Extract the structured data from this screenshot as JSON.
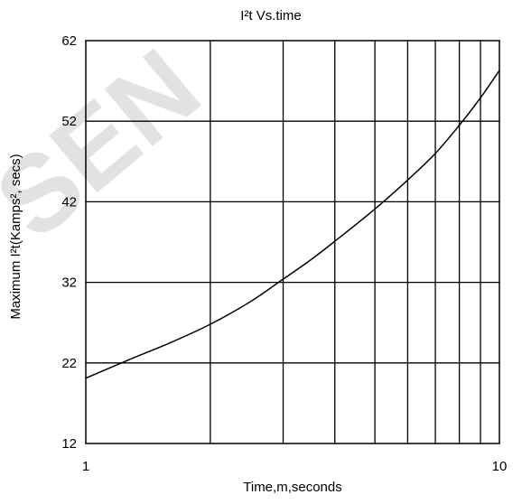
{
  "chart_data": {
    "type": "line",
    "title": "I²t  Vs.time",
    "xlabel": "Time,m,seconds",
    "ylabel": "Maximum I²t(Kamps², secs)",
    "xscale": "log",
    "xlim": [
      1,
      10
    ],
    "ylim": [
      12,
      62
    ],
    "xticks": [
      1,
      10
    ],
    "xtick_labels": [
      "1",
      "10"
    ],
    "yticks": [
      12,
      22,
      32,
      42,
      52,
      62
    ],
    "ytick_labels": [
      "12",
      "22",
      "32",
      "42",
      "52",
      "62"
    ],
    "grid": true,
    "series": [
      {
        "name": "",
        "color": "#000000",
        "x": [
          1.0,
          1.3,
          1.6,
          2.0,
          2.5,
          3.0,
          3.5,
          4.0,
          5.0,
          6.0,
          7.0,
          8.0,
          9.0,
          10.0
        ],
        "y": [
          20.1,
          22.6,
          24.5,
          26.8,
          29.6,
          32.4,
          34.8,
          37.1,
          41.1,
          44.7,
          48.0,
          51.5,
          54.9,
          58.3
        ]
      }
    ]
  },
  "watermark": "SEN"
}
